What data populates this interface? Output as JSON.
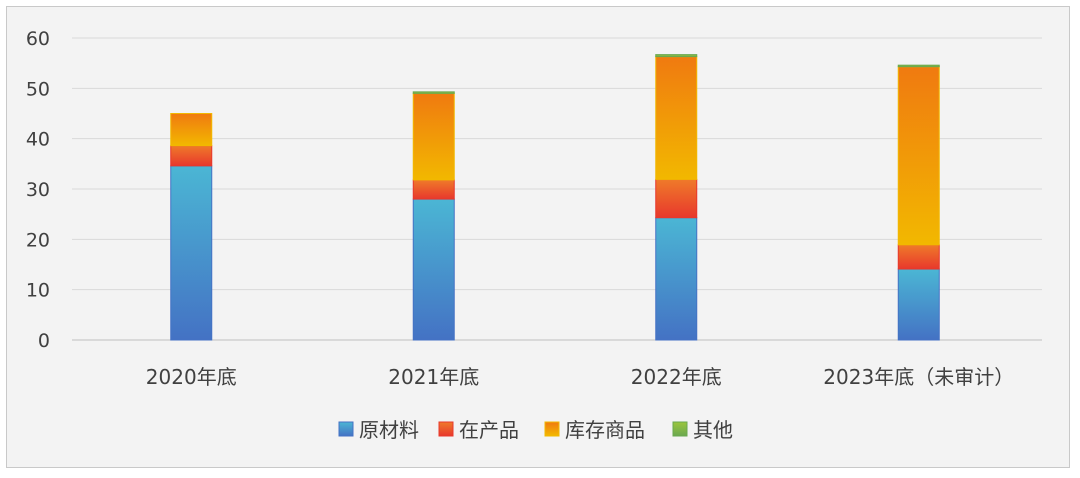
{
  "chart_data": {
    "type": "bar",
    "stacked": true,
    "title": "",
    "xlabel": "",
    "ylabel": "",
    "categories": [
      "2020年底",
      "2021年底",
      "2022年底",
      "2023年底（未审计）"
    ],
    "ylim": [
      0,
      60
    ],
    "yticks": [
      0,
      10,
      20,
      30,
      40,
      50,
      60
    ],
    "grid": true,
    "legend_position": "bottom",
    "series": [
      {
        "name": "原材料",
        "values": [
          34.6,
          28.0,
          24.3,
          14.1
        ],
        "color_top": "#4bb6d4",
        "color_bottom": "#4472c4"
      },
      {
        "name": "在产品",
        "values": [
          4.0,
          3.8,
          7.6,
          4.8
        ],
        "color_top": "#ef7a2a",
        "color_bottom": "#e8382c"
      },
      {
        "name": "库存商品",
        "values": [
          6.4,
          17.2,
          24.4,
          35.4
        ],
        "color_top": "#f07a10",
        "color_bottom": "#f2b800"
      },
      {
        "name": "其他",
        "values": [
          0.0,
          0.3,
          0.4,
          0.3
        ],
        "color_top": "#9bc53d",
        "color_bottom": "#6aa84f"
      }
    ]
  }
}
